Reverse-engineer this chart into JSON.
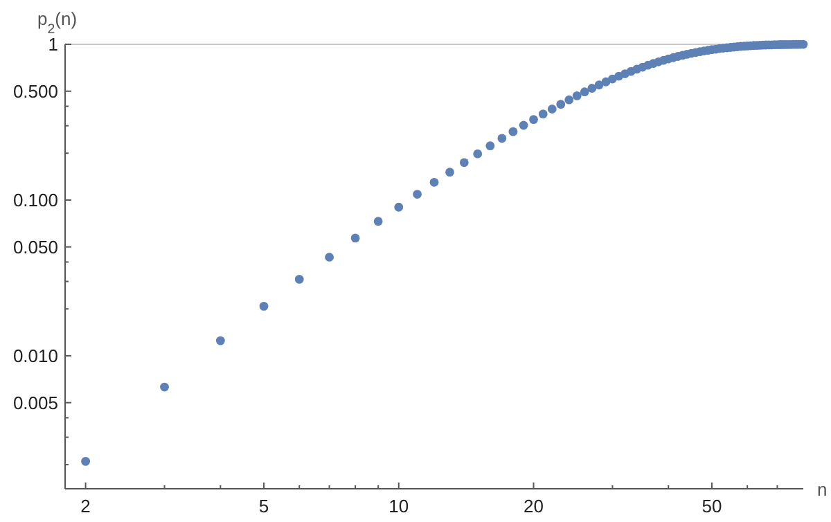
{
  "chart_data": {
    "type": "scatter",
    "xlabel": "n",
    "ylabel": "p$_{2}$(n)",
    "log": "xy",
    "marker": "circle",
    "grid": false,
    "xlim": [
      1.8,
      80
    ],
    "ylim": [
      0.0014,
      1
    ],
    "xticks": [
      2,
      {
        "value": 3,
        "label": null
      },
      {
        "value": 4,
        "label": null
      },
      5,
      {
        "value": 6,
        "label": null
      },
      {
        "value": 7,
        "label": null
      },
      {
        "value": 8,
        "label": null
      },
      {
        "value": 9,
        "label": null
      },
      10,
      20,
      {
        "value": 30,
        "label": null
      },
      {
        "value": 40,
        "label": null
      },
      50,
      {
        "value": 60,
        "label": null
      },
      {
        "value": 70,
        "label": null
      }
    ],
    "yticks": [
      {
        "value": 0.002,
        "label": null
      },
      {
        "value": 0.003,
        "label": null
      },
      {
        "value": 0.004,
        "label": null
      },
      {
        "value": 0.005,
        "label": "0.005"
      },
      {
        "value": 0.01,
        "label": "0.010"
      },
      {
        "value": 0.02,
        "label": null
      },
      {
        "value": 0.03,
        "label": null
      },
      {
        "value": 0.04,
        "label": null
      },
      {
        "value": 0.05,
        "label": "0.050"
      },
      {
        "value": 0.1,
        "label": "0.100"
      },
      {
        "value": 0.2,
        "label": null
      },
      {
        "value": 0.3,
        "label": null
      },
      {
        "value": 0.4,
        "label": null
      },
      {
        "value": 0.5,
        "label": "0.500"
      },
      1
    ],
    "ref_lines": [
      {
        "axis": "y",
        "value": 1,
        "color": "#c8c8c8"
      }
    ],
    "x": [
      2,
      3,
      4,
      5,
      6,
      7,
      8,
      9,
      10,
      11,
      12,
      13,
      14,
      15,
      16,
      17,
      18,
      19,
      20,
      21,
      22,
      23,
      24,
      25,
      26,
      27,
      28,
      29,
      30,
      31,
      32,
      33,
      34,
      35,
      36,
      37,
      38,
      39,
      40,
      41,
      42,
      43,
      44,
      45,
      46,
      47,
      48,
      49,
      50,
      51,
      52,
      53,
      54,
      55,
      56,
      57,
      58,
      59,
      60,
      61,
      62,
      63,
      64,
      65,
      66,
      67,
      68,
      69,
      70,
      71,
      72,
      73,
      74,
      75,
      76,
      77,
      78,
      79,
      80
    ],
    "series": [
      {
        "color": "#5e81b5",
        "values": [
          0.0021,
          0.0063,
          0.0125,
          0.0208,
          0.031,
          0.043,
          0.057,
          0.073,
          0.09,
          0.109,
          0.13,
          0.151,
          0.174,
          0.198,
          0.223,
          0.249,
          0.275,
          0.302,
          0.329,
          0.357,
          0.384,
          0.412,
          0.44,
          0.467,
          0.495,
          0.522,
          0.548,
          0.574,
          0.599,
          0.624,
          0.647,
          0.67,
          0.692,
          0.713,
          0.734,
          0.753,
          0.772,
          0.789,
          0.806,
          0.821,
          0.836,
          0.85,
          0.863,
          0.875,
          0.886,
          0.897,
          0.907,
          0.915,
          0.924,
          0.93,
          0.94,
          0.945,
          0.95,
          0.955,
          0.96,
          0.965,
          0.97,
          0.973,
          0.976,
          0.979,
          0.982,
          0.984,
          0.986,
          0.988,
          0.99,
          0.991,
          0.992,
          0.993,
          0.994,
          0.995,
          0.996,
          0.996,
          0.997,
          0.997,
          0.998,
          0.998,
          0.998,
          0.999,
          0.999
        ]
      }
    ]
  }
}
